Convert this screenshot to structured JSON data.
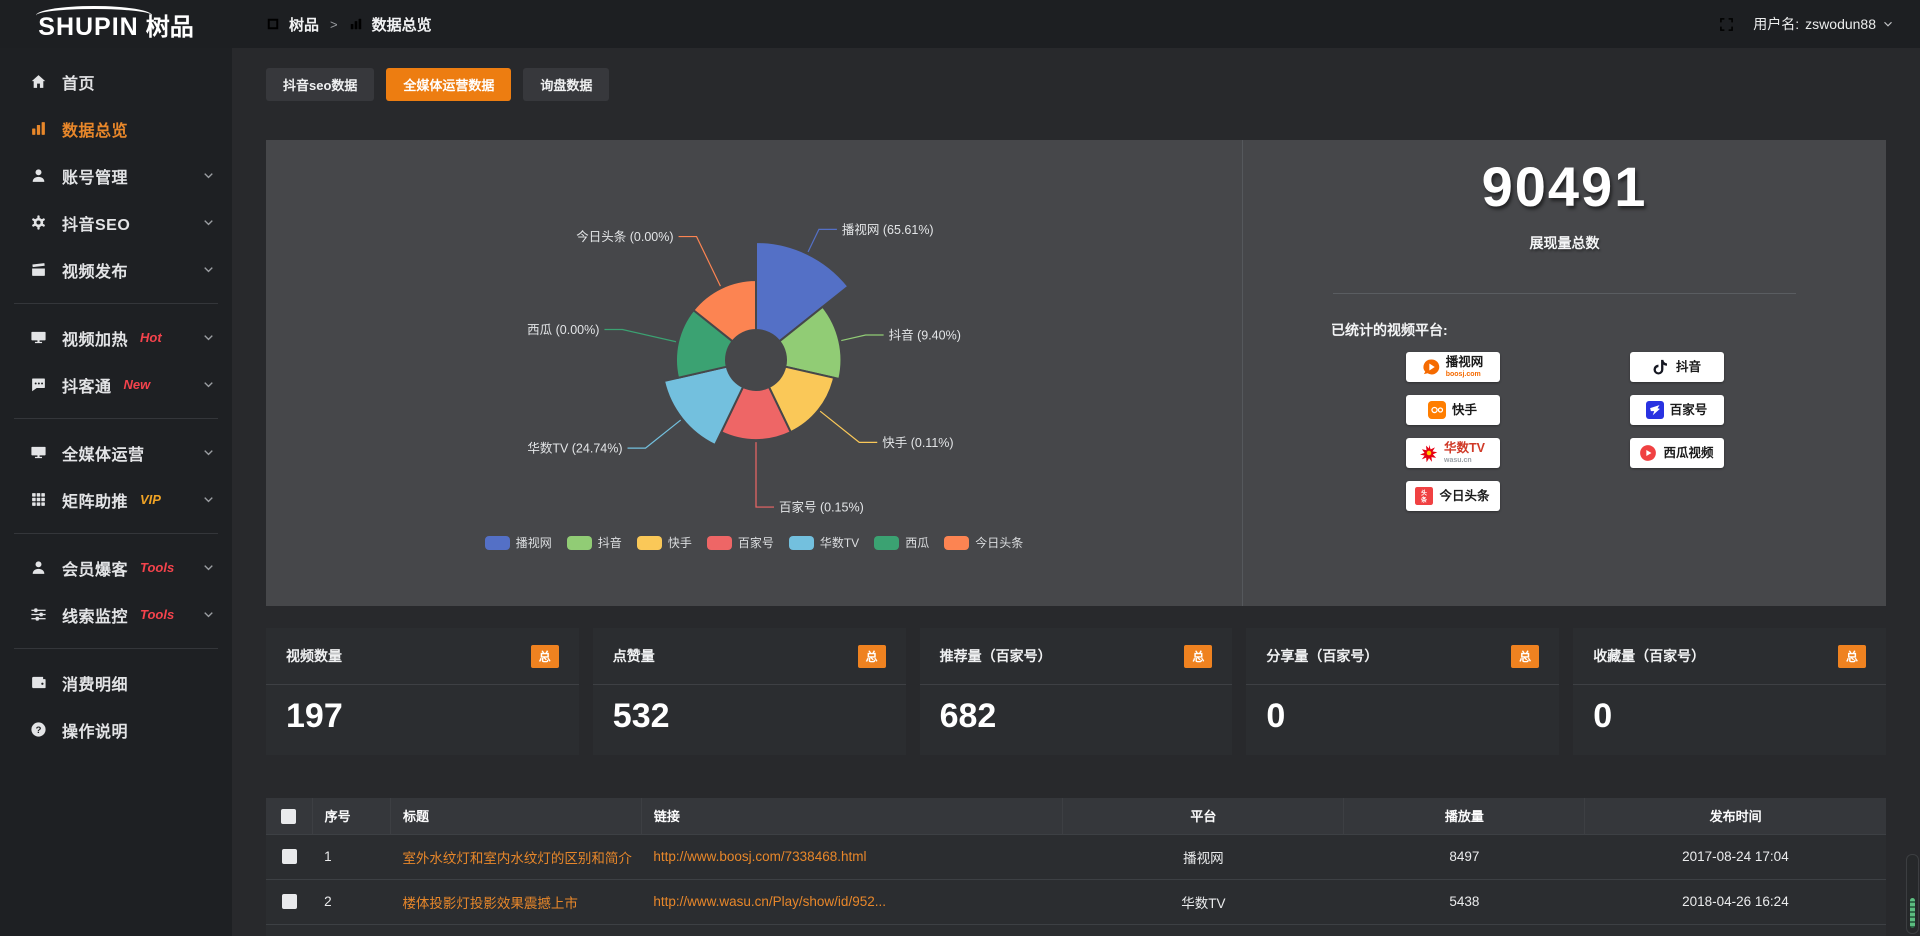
{
  "header": {
    "brand": "SHUPIN",
    "brand_cn": "树品",
    "breadcrumb_app": "树品",
    "breadcrumb_sep": ">",
    "breadcrumb_page": "数据总览",
    "username_prefix": "用户名:",
    "username": "zswodun88"
  },
  "sidebar": {
    "items": [
      {
        "icon": "home",
        "label": "首页"
      },
      {
        "icon": "chart",
        "label": "数据总览",
        "active": true
      },
      {
        "icon": "user",
        "label": "账号管理",
        "chevron": true
      },
      {
        "icon": "gear",
        "label": "抖音SEO",
        "chevron": true
      },
      {
        "icon": "clap",
        "label": "视频发布",
        "chevron": true
      },
      {
        "divider": true
      },
      {
        "icon": "screen",
        "label": "视频加热",
        "badge": "Hot",
        "badge_color": "#f4434c",
        "chevron": true
      },
      {
        "icon": "chat",
        "label": "抖客通",
        "badge": "New",
        "badge_color": "#f4434c",
        "chevron": true
      },
      {
        "divider": true
      },
      {
        "icon": "screen",
        "label": "全媒体运营",
        "chevron": true
      },
      {
        "icon": "grid",
        "label": "矩阵助推",
        "badge": "VIP",
        "badge_color": "#f0a325",
        "chevron": true
      },
      {
        "divider": true
      },
      {
        "icon": "user",
        "label": "会员爆客",
        "badge": "Tools",
        "badge_color": "#f4434c",
        "chevron": true
      },
      {
        "icon": "sliders",
        "label": "线索监控",
        "badge": "Tools",
        "badge_color": "#f4434c",
        "chevron": true
      },
      {
        "divider": true
      },
      {
        "icon": "wallet",
        "label": "消费明细"
      },
      {
        "icon": "question",
        "label": "操作说明"
      }
    ]
  },
  "tabs": [
    {
      "label": "抖音seo数据",
      "active": false
    },
    {
      "label": "全媒体运营数据",
      "active": true
    },
    {
      "label": "询盘数据",
      "active": false
    }
  ],
  "chart_data": {
    "type": "pie",
    "subtype": "nightingale-rose",
    "categories": [
      "播视网",
      "抖音",
      "快手",
      "百家号",
      "华数TV",
      "西瓜",
      "今日头条"
    ],
    "values_percent": [
      65.61,
      9.4,
      0.11,
      0.15,
      24.74,
      0.0,
      0.0
    ],
    "labels": [
      "播视网 (65.61%)",
      "抖音 (9.40%)",
      "快手 (0.11%)",
      "百家号 (0.15%)",
      "华数TV (24.74%)",
      "西瓜 (0.00%)",
      "今日头条 (0.00%)"
    ],
    "colors": [
      "#5470c6",
      "#91cc75",
      "#fac858",
      "#ee6666",
      "#73c0de",
      "#3ba272",
      "#fc8452"
    ],
    "legend": [
      "播视网",
      "抖音",
      "快手",
      "百家号",
      "华数TV",
      "西瓜",
      "今日头条"
    ],
    "legend_position": "bottom"
  },
  "summary": {
    "total": "90491",
    "total_caption": "展现量总数",
    "platforms_label": "已统计的视频平台:",
    "platform_columns": [
      [
        {
          "name": "播视网",
          "sub": "boosj.com",
          "sub_color": "#f56a00",
          "logo": "boosj"
        },
        {
          "name": "快手",
          "logo": "kuaishou"
        },
        {
          "name": "华数TV",
          "name_color": "#d03a28",
          "sub": "wasu.cn",
          "sub_color": "#9aa0a6",
          "logo": "wasu"
        },
        {
          "name": "今日头条",
          "logo": "toutiao"
        }
      ],
      [
        {
          "name": "抖音",
          "logo": "douyin"
        },
        {
          "name": "百家号",
          "logo": "baijia"
        },
        {
          "name": "西瓜视频",
          "logo": "xigua"
        }
      ]
    ]
  },
  "stat_cards": [
    {
      "label": "视频数量",
      "badge": "总",
      "value": "197"
    },
    {
      "label": "点赞量",
      "badge": "总",
      "value": "532"
    },
    {
      "label": "推荐量（百家号）",
      "badge": "总",
      "value": "682"
    },
    {
      "label": "分享量（百家号）",
      "badge": "总",
      "value": "0"
    },
    {
      "label": "收藏量（百家号）",
      "badge": "总",
      "value": "0"
    }
  ],
  "table": {
    "headers": [
      "序号",
      "标题",
      "链接",
      "平台",
      "播放量",
      "发布时间"
    ],
    "rows": [
      {
        "index": "1",
        "title": "室外水纹灯和室内水纹灯的区别和简介",
        "link": "http://www.boosj.com/7338468.html",
        "platform": "播视网",
        "plays": "8497",
        "published": "2017-08-24 17:04"
      },
      {
        "index": "2",
        "title": "楼体投影灯投影效果震撼上市",
        "link": "http://www.wasu.cn/Play/show/id/952...",
        "platform": "华数TV",
        "plays": "5438",
        "published": "2018-04-26 16:24"
      },
      {
        "index": "",
        "title": "",
        "link": "",
        "platform": "",
        "plays": "",
        "published": ""
      }
    ]
  }
}
